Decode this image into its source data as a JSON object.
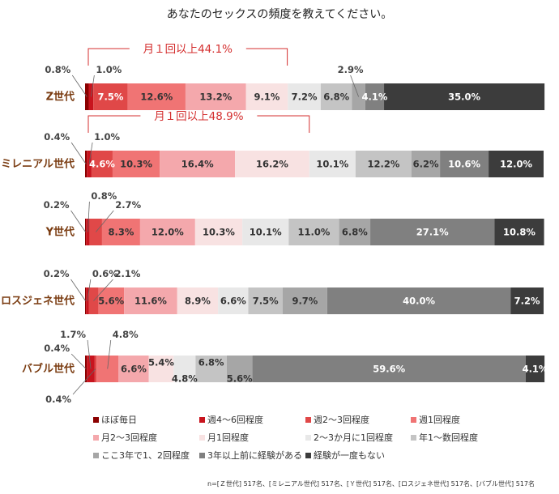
{
  "chart_data": {
    "type": "bar",
    "orientation": "horizontal",
    "stacked": true,
    "percent_scale": true,
    "title": "あなたのセックスの頻度を教えてください。",
    "categories": [
      "Z世代",
      "ミレニアル世代",
      "Y世代",
      "ロスジェネ世代",
      "バブル世代"
    ],
    "series": [
      {
        "name": "ほぼ毎日",
        "color": "#8b0000",
        "values": [
          0.8,
          0.4,
          0.2,
          0.2,
          0.4
        ]
      },
      {
        "name": "週4～6回程度",
        "color": "#c8141e",
        "values": [
          1.0,
          1.0,
          0.8,
          0.6,
          1.7
        ]
      },
      {
        "name": "週2～3回程度",
        "color": "#e04848",
        "values": [
          7.5,
          4.6,
          2.7,
          2.1,
          0.4
        ]
      },
      {
        "name": "週1回程度",
        "color": "#f07474",
        "values": [
          12.6,
          10.3,
          8.3,
          5.6,
          4.8
        ]
      },
      {
        "name": "月2～3回程度",
        "color": "#f4a8ac",
        "values": [
          13.2,
          16.4,
          12.0,
          11.6,
          6.6
        ]
      },
      {
        "name": "月1回程度",
        "color": "#f8e2e2",
        "values": [
          9.1,
          16.2,
          10.3,
          8.9,
          5.4
        ]
      },
      {
        "name": "2～3か月に1回程度",
        "color": "#e8e8e8",
        "values": [
          7.2,
          10.1,
          10.1,
          6.6,
          4.8
        ]
      },
      {
        "name": "年1～数回程度",
        "color": "#c4c4c4",
        "values": [
          6.8,
          12.2,
          11.0,
          7.5,
          6.8
        ]
      },
      {
        "name": "ここ3年で1、2回程度",
        "color": "#a6a6a6",
        "values": [
          2.9,
          6.2,
          6.8,
          9.7,
          5.6
        ]
      },
      {
        "name": "3年以上前に経験がある",
        "color": "#808080",
        "values": [
          4.1,
          10.6,
          27.1,
          40.0,
          59.6
        ]
      },
      {
        "name": "経験が一度もない",
        "color": "#3c3c3c",
        "values": [
          35.0,
          12.0,
          10.8,
          7.2,
          4.1
        ]
      }
    ],
    "brackets": [
      {
        "category_index": 0,
        "label": "月１回以上44.1%",
        "value": 44.1
      },
      {
        "category_index": 1,
        "label": "月１回以上48.9%",
        "value": 48.9
      }
    ],
    "legend_position": "bottom",
    "footnote": "n=[Ｚ世代] 517名、[ミレニアル世代] 517名、[Ｙ世代] 517名、[ロスジェネ世代] 517名、[バブル世代] 517名"
  }
}
